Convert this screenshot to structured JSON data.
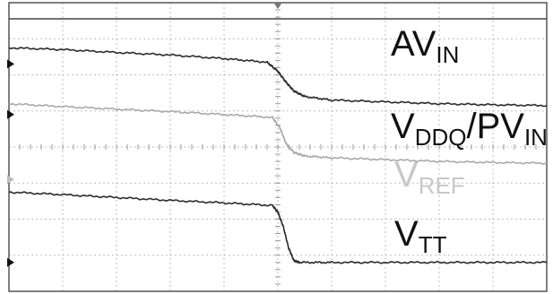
{
  "chart_data": {
    "type": "line",
    "grid": true,
    "grid_divisions": {
      "x": 10,
      "y": 8
    },
    "minor_ticks_per_division": 5,
    "background": "#ffffff",
    "grid_color": "#bdbdbd",
    "frame_color": "#555555",
    "x_range": [
      0,
      10
    ],
    "y_range": [
      0,
      8
    ],
    "channel_markers": [
      {
        "name": "ch1-ground-marker",
        "y": 6.3,
        "color": "#111111"
      },
      {
        "name": "ch2-ground-marker",
        "y": 4.9,
        "color": "#111111"
      },
      {
        "name": "ch3-ground-marker",
        "y": 3.1,
        "color": "#bdbdbd"
      },
      {
        "name": "ch4-ground-marker",
        "y": 0.8,
        "color": "#111111"
      }
    ],
    "series": [
      {
        "name": "AVIN",
        "label_main": "AV",
        "label_sub": "IN",
        "label_color": "#111111",
        "color": "#2b2b2b",
        "x": [
          0,
          1,
          2,
          3,
          4,
          4.8,
          5.0,
          5.15,
          5.3,
          5.5,
          6,
          7,
          8,
          9,
          10
        ],
        "y": [
          6.75,
          6.7,
          6.62,
          6.55,
          6.45,
          6.35,
          6.1,
          5.8,
          5.55,
          5.4,
          5.3,
          5.25,
          5.2,
          5.17,
          5.15
        ]
      },
      {
        "name": "VDDQ/PVIN",
        "label_main": "V",
        "label_sub": "DDQ",
        "label_main2": "/PV",
        "label_sub2": "IN",
        "label_color": "#111111",
        "color": "#a9a9a9",
        "x": [
          0,
          1,
          2,
          3,
          4,
          4.9,
          5.05,
          5.15,
          5.3,
          5.5,
          6,
          7,
          8,
          9,
          10
        ],
        "y": [
          5.2,
          5.12,
          5.05,
          4.98,
          4.9,
          4.82,
          4.5,
          4.1,
          3.85,
          3.75,
          3.7,
          3.65,
          3.6,
          3.57,
          3.55
        ]
      },
      {
        "name": "VREF",
        "label_main": "V",
        "label_sub": "REF",
        "label_color": "#c8c8c8",
        "color": "#c8c8c8",
        "x": [],
        "y": []
      },
      {
        "name": "VTT",
        "label_main": "V",
        "label_sub": "TT",
        "label_color": "#111111",
        "color": "#2b2b2b",
        "x": [
          0,
          1,
          2,
          3,
          4,
          4.9,
          5.0,
          5.1,
          5.2,
          5.3,
          5.4,
          6,
          7,
          8,
          9,
          10
        ],
        "y": [
          2.75,
          2.68,
          2.6,
          2.52,
          2.45,
          2.38,
          2.2,
          1.8,
          1.2,
          0.85,
          0.8,
          0.8,
          0.8,
          0.8,
          0.8,
          0.8
        ]
      }
    ]
  }
}
